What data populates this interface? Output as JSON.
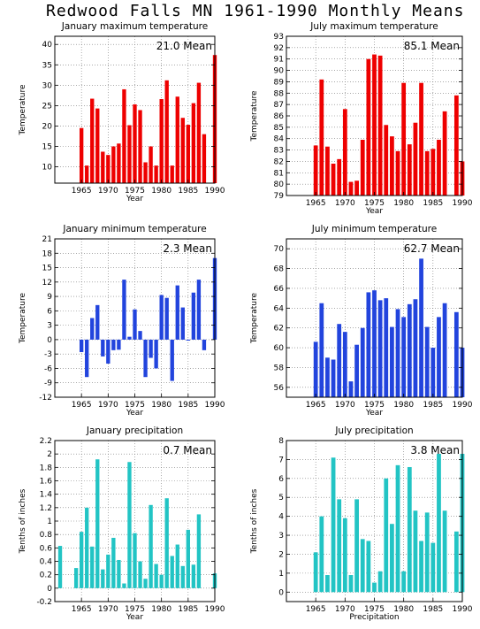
{
  "title": "Redwood Falls MN   1961-1990 Monthly Means",
  "chart_data": [
    {
      "type": "bar",
      "title": "January maximum temperature",
      "xlabel": "Year",
      "ylabel": "Temperature",
      "color": "#ee0000",
      "mean_label": "21.0 Mean",
      "xlim": [
        1960,
        1990
      ],
      "xticks": [
        1965,
        1970,
        1975,
        1980,
        1985,
        1990
      ],
      "ylim": [
        6,
        42
      ],
      "yticks": [
        10,
        15,
        20,
        25,
        30,
        35,
        40
      ],
      "grid": true,
      "x": [
        1961,
        1962,
        1963,
        1964,
        1965,
        1966,
        1967,
        1968,
        1969,
        1970,
        1971,
        1972,
        1973,
        1974,
        1975,
        1976,
        1977,
        1978,
        1979,
        1980,
        1981,
        1982,
        1983,
        1984,
        1985,
        1986,
        1987,
        1988,
        1989,
        1990
      ],
      "values": [
        null,
        null,
        null,
        null,
        19.5,
        10.3,
        26.7,
        24.3,
        13.7,
        12.9,
        15.0,
        15.7,
        29.0,
        20.2,
        25.3,
        23.9,
        11.1,
        15.0,
        10.3,
        26.6,
        31.2,
        10.3,
        27.2,
        22.0,
        20.3,
        25.6,
        30.6,
        18.0,
        null,
        37.4
      ]
    },
    {
      "type": "bar",
      "title": "July maximum temperature",
      "xlabel": "Year",
      "ylabel": "Temperature",
      "color": "#ee0000",
      "mean_label": "85.1 Mean",
      "xlim": [
        1960,
        1990
      ],
      "xticks": [
        1965,
        1970,
        1975,
        1980,
        1985,
        1990
      ],
      "ylim": [
        79,
        93
      ],
      "yticks": [
        79,
        80,
        81,
        82,
        83,
        84,
        85,
        86,
        87,
        88,
        89,
        90,
        91,
        92,
        93
      ],
      "grid": true,
      "x": [
        1961,
        1962,
        1963,
        1964,
        1965,
        1966,
        1967,
        1968,
        1969,
        1970,
        1971,
        1972,
        1973,
        1974,
        1975,
        1976,
        1977,
        1978,
        1979,
        1980,
        1981,
        1982,
        1983,
        1984,
        1985,
        1986,
        1987,
        1988,
        1989,
        1990
      ],
      "values": [
        null,
        null,
        null,
        null,
        83.4,
        89.2,
        83.3,
        81.8,
        82.2,
        86.6,
        80.2,
        80.3,
        83.9,
        91.0,
        91.4,
        91.3,
        85.2,
        84.2,
        82.9,
        88.9,
        83.5,
        85.4,
        88.9,
        82.9,
        83.1,
        83.9,
        86.4,
        null,
        87.8,
        82.0
      ]
    },
    {
      "type": "bar",
      "title": "January minimum temperature",
      "xlabel": "Year",
      "ylabel": "Temperature",
      "color": "#2244dd",
      "mean_label": "2.3 Mean",
      "xlim": [
        1960,
        1990
      ],
      "xticks": [
        1965,
        1970,
        1975,
        1980,
        1985,
        1990
      ],
      "ylim": [
        -12,
        21
      ],
      "yticks": [
        -12,
        -9,
        -6,
        -3,
        0,
        3,
        6,
        9,
        12,
        15,
        18,
        21
      ],
      "grid": true,
      "x": [
        1961,
        1962,
        1963,
        1964,
        1965,
        1966,
        1967,
        1968,
        1969,
        1970,
        1971,
        1972,
        1973,
        1974,
        1975,
        1976,
        1977,
        1978,
        1979,
        1980,
        1981,
        1982,
        1983,
        1984,
        1985,
        1986,
        1987,
        1988,
        1989,
        1990
      ],
      "values": [
        null,
        null,
        null,
        null,
        -2.6,
        -7.8,
        4.5,
        7.2,
        -3.5,
        -5.0,
        -2.2,
        -2.1,
        12.5,
        0.6,
        6.3,
        1.8,
        -7.8,
        -3.8,
        -6.0,
        9.3,
        8.7,
        -8.6,
        11.3,
        6.7,
        -0.2,
        9.8,
        12.5,
        -2.2,
        null,
        17.0
      ]
    },
    {
      "type": "bar",
      "title": "July minimum temperature",
      "xlabel": "Year",
      "ylabel": "Temperature",
      "color": "#2244dd",
      "mean_label": "62.7 Mean",
      "xlim": [
        1960,
        1990
      ],
      "xticks": [
        1965,
        1970,
        1975,
        1980,
        1985,
        1990
      ],
      "ylim": [
        55,
        71
      ],
      "yticks": [
        56,
        58,
        60,
        62,
        64,
        66,
        68,
        70
      ],
      "grid": true,
      "x": [
        1961,
        1962,
        1963,
        1964,
        1965,
        1966,
        1967,
        1968,
        1969,
        1970,
        1971,
        1972,
        1973,
        1974,
        1975,
        1976,
        1977,
        1978,
        1979,
        1980,
        1981,
        1982,
        1983,
        1984,
        1985,
        1986,
        1987,
        1988,
        1989,
        1990
      ],
      "values": [
        null,
        null,
        null,
        null,
        60.6,
        64.5,
        59.0,
        58.8,
        62.4,
        61.6,
        56.6,
        60.3,
        62.0,
        65.6,
        65.8,
        64.8,
        65.0,
        62.1,
        63.9,
        63.1,
        64.4,
        64.9,
        69.0,
        62.1,
        60.0,
        63.1,
        64.5,
        null,
        63.6,
        60.0
      ]
    },
    {
      "type": "bar",
      "title": "January precipitation",
      "xlabel": "Year",
      "ylabel": "Tenths of inches",
      "color": "#22c4c4",
      "mean_label": "0.7 Mean",
      "xlim": [
        1960,
        1990
      ],
      "xticks": [
        1965,
        1970,
        1975,
        1980,
        1985,
        1990
      ],
      "ylim": [
        -0.2,
        2.2
      ],
      "yticks": [
        -0.2,
        0,
        0.2,
        0.4,
        0.6,
        0.8,
        1,
        1.2,
        1.4,
        1.6,
        1.8,
        2,
        2.2
      ],
      "grid": true,
      "x": [
        1961,
        1962,
        1963,
        1964,
        1965,
        1966,
        1967,
        1968,
        1969,
        1970,
        1971,
        1972,
        1973,
        1974,
        1975,
        1976,
        1977,
        1978,
        1979,
        1980,
        1981,
        1982,
        1983,
        1984,
        1985,
        1986,
        1987,
        1988,
        1989,
        1990
      ],
      "values": [
        0.63,
        null,
        null,
        0.3,
        0.84,
        1.2,
        0.62,
        1.92,
        0.28,
        0.5,
        0.75,
        0.42,
        0.07,
        1.88,
        0.82,
        0.4,
        0.14,
        1.24,
        0.36,
        0.2,
        1.34,
        0.48,
        0.65,
        0.33,
        0.87,
        0.35,
        1.1,
        null,
        null,
        0.22
      ]
    },
    {
      "type": "bar",
      "title": "July precipitation",
      "xlabel": "Precipitation",
      "ylabel": "Tenths of inches",
      "color": "#22c4c4",
      "mean_label": "3.8 Mean",
      "xlim": [
        1960,
        1990
      ],
      "xticks": [
        1965,
        1970,
        1975,
        1980,
        1985,
        1990
      ],
      "ylim": [
        -0.5,
        8
      ],
      "yticks": [
        0,
        1,
        2,
        3,
        4,
        5,
        6,
        7,
        8
      ],
      "grid": true,
      "x": [
        1961,
        1962,
        1963,
        1964,
        1965,
        1966,
        1967,
        1968,
        1969,
        1970,
        1971,
        1972,
        1973,
        1974,
        1975,
        1976,
        1977,
        1978,
        1979,
        1980,
        1981,
        1982,
        1983,
        1984,
        1985,
        1986,
        1987,
        1988,
        1989,
        1990
      ],
      "values": [
        null,
        null,
        null,
        null,
        2.1,
        4.0,
        0.9,
        7.1,
        4.9,
        3.9,
        0.9,
        4.9,
        2.8,
        2.7,
        0.5,
        1.1,
        6.0,
        3.6,
        6.7,
        1.1,
        6.6,
        4.3,
        2.7,
        4.2,
        2.6,
        7.3,
        4.3,
        null,
        3.2,
        7.3
      ]
    }
  ]
}
